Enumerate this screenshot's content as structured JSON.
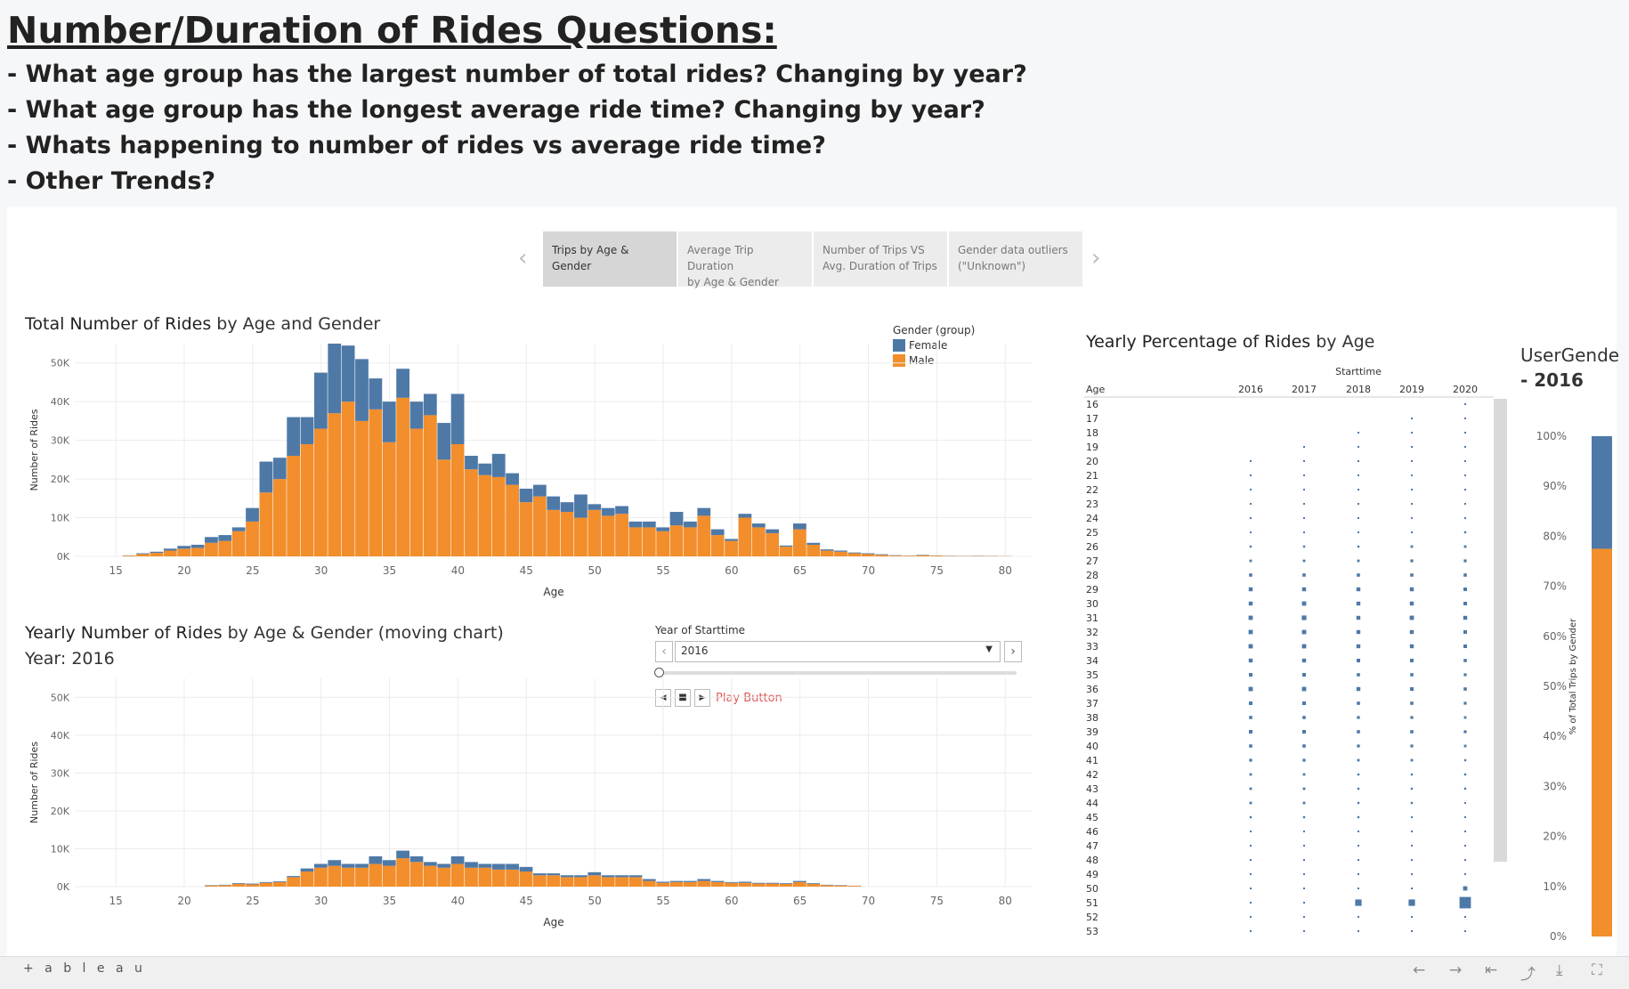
{
  "header": {
    "title": "Number/Duration of Rides Questions:",
    "questions": [
      "- What age group has the largest number of total rides? Changing by year?",
      "- What age group has the longest average ride time? Changing by year?",
      "- Whats happening to number of rides vs average ride time?",
      "- Other Trends?"
    ]
  },
  "tabs": [
    {
      "label_1": "Trips by Age & Gender",
      "label_2": ""
    },
    {
      "label_1": "Average Trip Duration",
      "label_2": "by Age & Gender"
    },
    {
      "label_1": "Number of Trips VS",
      "label_2": "Avg. Duration of Trips"
    },
    {
      "label_1": "Gender data  outliers",
      "label_2": "(\"Unknown\")"
    }
  ],
  "colors": {
    "female": "#4e79a7",
    "male": "#f28e2b",
    "accent_red": "#e15759"
  },
  "total_chart": {
    "title_bold": "Total Number of Rides",
    "title_rest": " by Age and Gender"
  },
  "yearly_chart": {
    "title_bold": "Yearly Number of Rides",
    "title_rest": " by Age & Gender (moving chart)",
    "subtitle": "Year: 2016"
  },
  "percent_chart": {
    "title_bold": "Yearly Percentage of Rides",
    "title_rest": " by Age"
  },
  "user_gender_panel": {
    "title": "UserGende",
    "subtitle": "- 2016"
  },
  "year_control": {
    "label": "Year of Starttime",
    "value": "2016",
    "play_label": "Play Button"
  },
  "footer": {
    "logo": "+ a b l e a u"
  },
  "chart_data": [
    {
      "type": "bar",
      "stacked": true,
      "title": "Total Number of Rides by Age and Gender",
      "xlabel": "Age",
      "ylabel": "Number of Rides",
      "xlim": [
        12,
        82
      ],
      "ylim": [
        0,
        55000
      ],
      "x_ticks": [
        15,
        20,
        25,
        30,
        35,
        40,
        45,
        50,
        55,
        60,
        65,
        70,
        75,
        80
      ],
      "y_ticks": [
        {
          "v": 0,
          "l": "0K"
        },
        {
          "v": 10000,
          "l": "10K"
        },
        {
          "v": 20000,
          "l": "20K"
        },
        {
          "v": 30000,
          "l": "30K"
        },
        {
          "v": 40000,
          "l": "40K"
        },
        {
          "v": 50000,
          "l": "50K"
        }
      ],
      "legend": {
        "title": "Gender (group)",
        "position": "top-right"
      },
      "x": [
        16,
        17,
        18,
        19,
        20,
        21,
        22,
        23,
        24,
        25,
        26,
        27,
        28,
        29,
        30,
        31,
        32,
        33,
        34,
        35,
        36,
        37,
        38,
        39,
        40,
        41,
        42,
        43,
        44,
        45,
        46,
        47,
        48,
        49,
        50,
        51,
        52,
        53,
        54,
        55,
        56,
        57,
        58,
        59,
        60,
        61,
        62,
        63,
        64,
        65,
        66,
        67,
        68,
        69,
        70,
        71,
        72,
        73,
        74,
        75,
        76,
        77,
        78,
        79,
        80
      ],
      "series": [
        {
          "name": "Male",
          "values": [
            200,
            600,
            900,
            1500,
            2000,
            2200,
            3500,
            4000,
            6500,
            9000,
            16500,
            20000,
            26000,
            29000,
            33000,
            37000,
            40000,
            35000,
            38000,
            29500,
            41000,
            33000,
            36500,
            25000,
            29000,
            22500,
            21000,
            20500,
            18500,
            14000,
            15500,
            12000,
            11500,
            10000,
            12000,
            10500,
            11000,
            7500,
            7500,
            6500,
            8000,
            7500,
            10500,
            5500,
            4000,
            10000,
            7500,
            6000,
            2500,
            7000,
            3000,
            1500,
            1200,
            800,
            600,
            400,
            200,
            150,
            300,
            200,
            100,
            80,
            100,
            80,
            50
          ]
        },
        {
          "name": "Female",
          "values": [
            50,
            200,
            300,
            500,
            700,
            800,
            1500,
            1500,
            1000,
            3500,
            8000,
            5500,
            10000,
            7000,
            14500,
            18000,
            14500,
            16000,
            8000,
            10500,
            7500,
            7000,
            5500,
            9500,
            13000,
            3500,
            3000,
            6000,
            3000,
            3500,
            3000,
            3500,
            2500,
            6000,
            1500,
            2000,
            2000,
            1500,
            1500,
            1000,
            3500,
            1500,
            2000,
            1500,
            500,
            1000,
            1000,
            1000,
            300,
            1500,
            500,
            300,
            300,
            200,
            200,
            150,
            100,
            50,
            100,
            50,
            50,
            50,
            50,
            50,
            30
          ]
        }
      ]
    },
    {
      "type": "bar",
      "stacked": true,
      "title": "Yearly Number of Rides by Age & Gender (moving chart)",
      "xlabel": "Age",
      "ylabel": "Number of Rides",
      "xlim": [
        12,
        82
      ],
      "ylim": [
        0,
        55000
      ],
      "x_ticks": [
        15,
        20,
        25,
        30,
        35,
        40,
        45,
        50,
        55,
        60,
        65,
        70,
        75,
        80
      ],
      "y_ticks": [
        {
          "v": 0,
          "l": "0K"
        },
        {
          "v": 10000,
          "l": "10K"
        },
        {
          "v": 20000,
          "l": "20K"
        },
        {
          "v": 30000,
          "l": "30K"
        },
        {
          "v": 40000,
          "l": "40K"
        },
        {
          "v": 50000,
          "l": "50K"
        }
      ],
      "x": [
        22,
        23,
        24,
        25,
        26,
        27,
        28,
        29,
        30,
        31,
        32,
        33,
        34,
        35,
        36,
        37,
        38,
        39,
        40,
        41,
        42,
        43,
        44,
        45,
        46,
        47,
        48,
        49,
        50,
        51,
        52,
        53,
        54,
        55,
        56,
        57,
        58,
        59,
        60,
        61,
        62,
        63,
        64,
        65,
        66,
        67,
        68,
        69
      ],
      "series": [
        {
          "name": "Male",
          "values": [
            300,
            400,
            700,
            600,
            1000,
            1200,
            2500,
            4000,
            5000,
            5500,
            5000,
            5000,
            6000,
            5500,
            7500,
            6500,
            5500,
            5000,
            6000,
            5000,
            5000,
            4500,
            4500,
            4000,
            3000,
            3000,
            2500,
            2500,
            3000,
            2500,
            2500,
            2500,
            1500,
            1000,
            1200,
            1200,
            1500,
            1200,
            1000,
            1000,
            800,
            800,
            700,
            1200,
            700,
            400,
            300,
            200
          ]
        },
        {
          "name": "Female",
          "values": [
            100,
            100,
            200,
            200,
            200,
            200,
            300,
            800,
            1000,
            1500,
            1000,
            1000,
            2000,
            1500,
            2000,
            1500,
            1000,
            1000,
            2000,
            1500,
            1000,
            1500,
            1500,
            1200,
            500,
            500,
            500,
            500,
            800,
            500,
            500,
            500,
            500,
            300,
            300,
            300,
            500,
            300,
            200,
            300,
            200,
            200,
            200,
            300,
            200,
            100,
            100,
            50
          ]
        }
      ]
    },
    {
      "type": "scatter",
      "title": "Yearly Percentage of Rides by Age",
      "xlabel": "Starttime",
      "ylabel": "Age",
      "years": [
        "2016",
        "2017",
        "2018",
        "2019",
        "2020"
      ],
      "ages": [
        16,
        17,
        18,
        19,
        20,
        21,
        22,
        23,
        24,
        25,
        26,
        27,
        28,
        29,
        30,
        31,
        32,
        33,
        34,
        35,
        36,
        37,
        38,
        39,
        40,
        41,
        42,
        43,
        44,
        45,
        46,
        47,
        48,
        49,
        50,
        51,
        52,
        53
      ],
      "sizes_by_year": [
        [
          0,
          0,
          0,
          0,
          0.1,
          0.1,
          0.1,
          0.1,
          0.15,
          0.2,
          0.3,
          0.35,
          0.45,
          0.55,
          0.55,
          0.6,
          0.6,
          0.6,
          0.55,
          0.5,
          0.6,
          0.5,
          0.45,
          0.5,
          0.45,
          0.4,
          0.35,
          0.35,
          0.35,
          0.3,
          0.25,
          0.25,
          0.25,
          0.2,
          0.25,
          0.2,
          0.2,
          0.2
        ],
        [
          0,
          0,
          0,
          0.1,
          0.1,
          0.1,
          0.1,
          0.1,
          0.15,
          0.2,
          0.3,
          0.35,
          0.45,
          0.55,
          0.6,
          0.65,
          0.6,
          0.6,
          0.55,
          0.5,
          0.6,
          0.5,
          0.45,
          0.5,
          0.45,
          0.4,
          0.35,
          0.35,
          0.35,
          0.3,
          0.25,
          0.25,
          0.25,
          0.2,
          0.25,
          0.2,
          0.2,
          0.2
        ],
        [
          0,
          0,
          0.1,
          0.1,
          0.1,
          0.1,
          0.1,
          0.15,
          0.15,
          0.2,
          0.3,
          0.35,
          0.45,
          0.55,
          0.55,
          0.55,
          0.55,
          0.55,
          0.5,
          0.45,
          0.55,
          0.45,
          0.4,
          0.45,
          0.4,
          0.35,
          0.3,
          0.3,
          0.3,
          0.3,
          0.25,
          0.25,
          0.2,
          0.2,
          0.25,
          0.9,
          0.2,
          0.2
        ],
        [
          0,
          0.1,
          0.1,
          0.1,
          0.1,
          0.1,
          0.15,
          0.15,
          0.2,
          0.25,
          0.35,
          0.4,
          0.45,
          0.55,
          0.55,
          0.6,
          0.55,
          0.55,
          0.5,
          0.45,
          0.5,
          0.45,
          0.4,
          0.45,
          0.4,
          0.35,
          0.3,
          0.3,
          0.3,
          0.25,
          0.25,
          0.25,
          0.2,
          0.2,
          0.25,
          0.9,
          0.2,
          0.2
        ],
        [
          0.1,
          0.1,
          0.1,
          0.1,
          0.15,
          0.15,
          0.2,
          0.2,
          0.25,
          0.3,
          0.35,
          0.4,
          0.45,
          0.5,
          0.5,
          0.55,
          0.5,
          0.5,
          0.45,
          0.4,
          0.45,
          0.4,
          0.35,
          0.4,
          0.35,
          0.3,
          0.3,
          0.3,
          0.25,
          0.25,
          0.25,
          0.2,
          0.2,
          0.2,
          0.6,
          1.6,
          0.2,
          0.2
        ]
      ]
    },
    {
      "type": "bar",
      "stacked": true,
      "title": "",
      "ylabel": "% of Total Trips by Gender",
      "ylim": [
        0,
        100
      ],
      "y_ticks": [
        "0%",
        "10%",
        "20%",
        "30%",
        "40%",
        "50%",
        "60%",
        "70%",
        "80%",
        "90%",
        "100%"
      ],
      "series": [
        {
          "name": "Male",
          "values": [
            77.5
          ]
        },
        {
          "name": "Female",
          "values": [
            22.5
          ]
        }
      ]
    }
  ]
}
